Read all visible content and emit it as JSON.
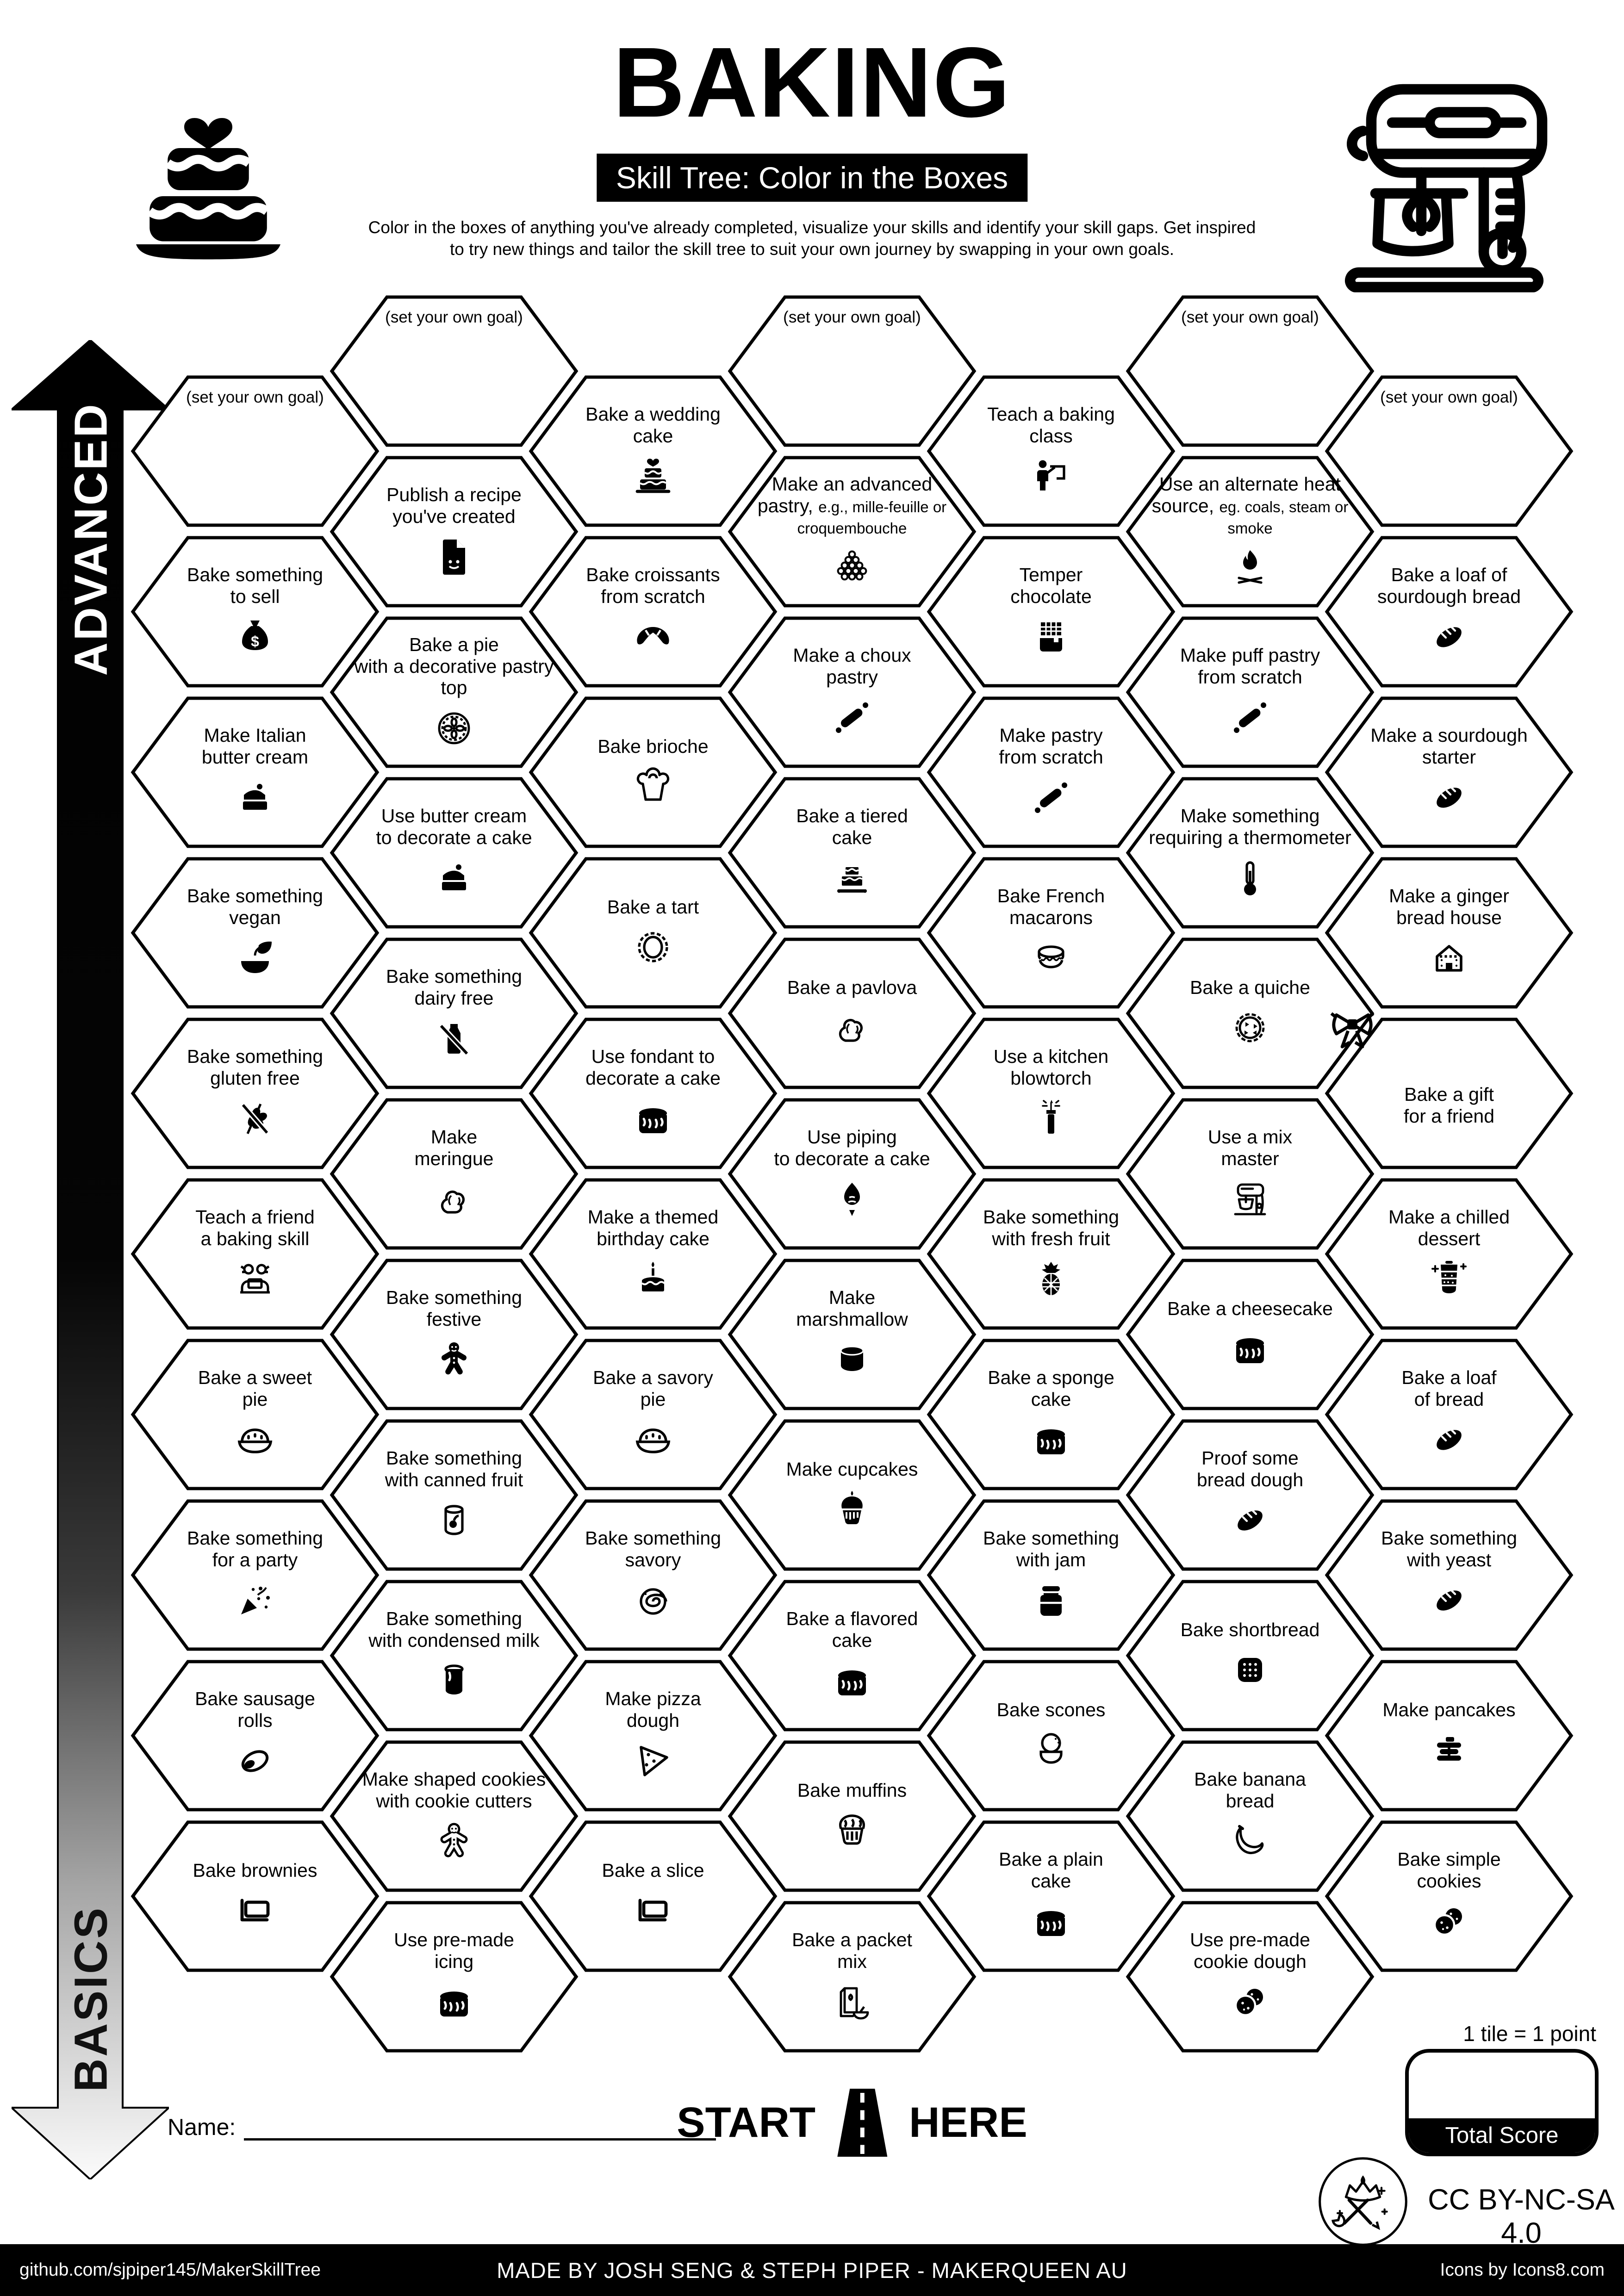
{
  "header": {
    "title": "BAKING",
    "subtitle": "Skill Tree: Color in the Boxes",
    "description_line1": "Color in the boxes of anything you've already completed, visualize your skills and identify your skill gaps.  Get inspired",
    "description_line2": "to try new things and tailor the skill tree to suit your own journey by swapping in your own goals."
  },
  "axis": {
    "top_label": "ADVANCED",
    "bottom_label": "BASICS"
  },
  "start": {
    "left": "START",
    "right": "HERE"
  },
  "score": {
    "note": "1 tile = 1 point",
    "box_label": "Total Score"
  },
  "name_label": "Name:",
  "license": "CC BY-NC-SA 4.0",
  "footer": {
    "left": "github.com/sjpiper145/MakerSkillTree",
    "center": "MADE BY JOSH SENG & STEPH PIPER  -  MAKERQUEEN AU",
    "right": "Icons by Icons8.com"
  },
  "grid": {
    "columns": [
      {
        "tiles": [
          {
            "goal": true,
            "label": "(set your own goal)"
          },
          {
            "label": "Bake something\nto sell",
            "icon": "money-bag"
          },
          {
            "label": "Make Italian\nbutter cream",
            "icon": "cream-cake"
          },
          {
            "label": "Bake something\nvegan",
            "icon": "vegan-bowl"
          },
          {
            "label": "Bake something\ngluten free",
            "icon": "gluten-free"
          },
          {
            "label": "Teach a friend\na baking skill",
            "icon": "teach-friend"
          },
          {
            "label": "Bake a sweet\npie",
            "icon": "pie-outline"
          },
          {
            "label": "Bake something\nfor a party",
            "icon": "party-popper"
          },
          {
            "label": "Bake sausage\nrolls",
            "icon": "sausage-roll"
          },
          {
            "label": "Bake brownies",
            "icon": "baking-pan"
          }
        ]
      },
      {
        "tiles": [
          {
            "goal": true,
            "label": "(set your own goal)"
          },
          {
            "label": "Publish a recipe\nyou've created",
            "icon": "recipe-doc"
          },
          {
            "label": "Bake a pie\nwith a decorative pastry\ntop",
            "icon": "pie-top"
          },
          {
            "label": "Use butter cream\nto decorate a cake",
            "icon": "cream-cake"
          },
          {
            "label": "Bake something\ndairy free",
            "icon": "no-dairy"
          },
          {
            "label": "Make\nmeringue",
            "icon": "meringue"
          },
          {
            "label": "Bake something\nfestive",
            "icon": "gingerbread-solid"
          },
          {
            "label": "Bake something\nwith canned fruit",
            "icon": "fruit-can"
          },
          {
            "label": "Bake something\nwith condensed milk",
            "icon": "milk-can"
          },
          {
            "label": "Make shaped cookies\nwith cookie cutters",
            "icon": "gingerbread-outline"
          },
          {
            "label": "Use pre-made\nicing",
            "icon": "iced-cake"
          }
        ]
      },
      {
        "tiles": [
          {
            "label": "Bake a wedding\ncake",
            "icon": "wedding-cake"
          },
          {
            "label": "Bake croissants\nfrom scratch",
            "icon": "croissant"
          },
          {
            "label": "Bake brioche",
            "icon": "brioche"
          },
          {
            "label": "Bake a tart",
            "icon": "tart"
          },
          {
            "label": "Use fondant to\ndecorate a cake",
            "icon": "iced-cake"
          },
          {
            "label": "Make a themed\nbirthday cake",
            "icon": "birthday-cake"
          },
          {
            "label": "Bake a savory\npie",
            "icon": "pie-outline"
          },
          {
            "label": "Bake something\nsavory",
            "icon": "swirl-bun"
          },
          {
            "label": "Make pizza\ndough",
            "icon": "pizza"
          },
          {
            "label": "Bake a slice",
            "icon": "baking-pan"
          }
        ]
      },
      {
        "tiles": [
          {
            "goal": true,
            "label": "(set your own goal)"
          },
          {
            "label": "Make an advanced pastry,",
            "sub": "e.g., mille-feuille or croquembouche",
            "icon": "croquembouche"
          },
          {
            "label": "Make a choux\npastry",
            "icon": "rolling-pin"
          },
          {
            "label": "Bake a tiered\ncake",
            "icon": "tiered-cake"
          },
          {
            "label": "Bake a pavlova",
            "icon": "meringue"
          },
          {
            "label": "Use piping\nto decorate a cake",
            "icon": "piping-bag"
          },
          {
            "label": "Make\nmarshmallow",
            "icon": "marshmallow"
          },
          {
            "label": "Make cupcakes",
            "icon": "cupcake"
          },
          {
            "label": "Bake a flavored\ncake",
            "icon": "iced-cake"
          },
          {
            "label": "Bake muffins",
            "icon": "muffin"
          },
          {
            "label": "Bake a packet\nmix",
            "icon": "packet-mix"
          }
        ]
      },
      {
        "tiles": [
          {
            "label": "Teach a baking\nclass",
            "icon": "teach-class"
          },
          {
            "label": "Temper\nchocolate",
            "icon": "chocolate"
          },
          {
            "label": "Make pastry\nfrom scratch",
            "icon": "rolling-pin"
          },
          {
            "label": "Bake French\nmacarons",
            "icon": "macaron"
          },
          {
            "label": "Use a kitchen\nblowtorch",
            "icon": "blowtorch"
          },
          {
            "label": "Bake something\nwith fresh fruit",
            "icon": "pineapple"
          },
          {
            "label": "Bake a sponge\ncake",
            "icon": "iced-cake"
          },
          {
            "label": "Bake something\nwith jam",
            "icon": "jam-jar"
          },
          {
            "label": "Bake scones",
            "icon": "scone"
          },
          {
            "label": "Bake a plain\ncake",
            "icon": "iced-cake"
          }
        ]
      },
      {
        "tiles": [
          {
            "goal": true,
            "label": "(set your own goal)"
          },
          {
            "label": "Use an alternate heat source,",
            "sub": "eg. coals, steam or smoke",
            "icon": "campfire"
          },
          {
            "label": "Make puff pastry\nfrom scratch",
            "icon": "rolling-pin"
          },
          {
            "label": "Make something\nrequiring a thermometer",
            "icon": "thermometer"
          },
          {
            "label": "Bake a quiche",
            "icon": "quiche"
          },
          {
            "label": "Use a mix\nmaster",
            "icon": "stand-mixer"
          },
          {
            "label": "Bake a cheesecake",
            "icon": "iced-cake"
          },
          {
            "label": "Proof some\nbread dough",
            "icon": "bread"
          },
          {
            "label": "Bake shortbread",
            "icon": "shortbread"
          },
          {
            "label": "Bake banana\nbread",
            "icon": "banana"
          },
          {
            "label": "Use pre-made\ncookie dough",
            "icon": "cookies"
          }
        ]
      },
      {
        "tiles": [
          {
            "goal": true,
            "label": "(set your own goal)"
          },
          {
            "label": "Bake a loaf of\nsourdough bread",
            "icon": "bread"
          },
          {
            "label": "Make a sourdough\nstarter",
            "icon": "bread"
          },
          {
            "label": "Make a ginger\nbread house",
            "icon": "gingerbread-house"
          },
          {
            "label": "Bake a gift\nfor a friend",
            "icon": "gift-bow",
            "corner": true
          },
          {
            "label": "Make a chilled\ndessert",
            "icon": "parfait"
          },
          {
            "label": "Bake a loaf\nof bread",
            "icon": "bread"
          },
          {
            "label": "Bake something\nwith yeast",
            "icon": "bread"
          },
          {
            "label": "Make pancakes",
            "icon": "pancakes"
          },
          {
            "label": "Bake simple\ncookies",
            "icon": "cookies"
          }
        ]
      }
    ]
  }
}
